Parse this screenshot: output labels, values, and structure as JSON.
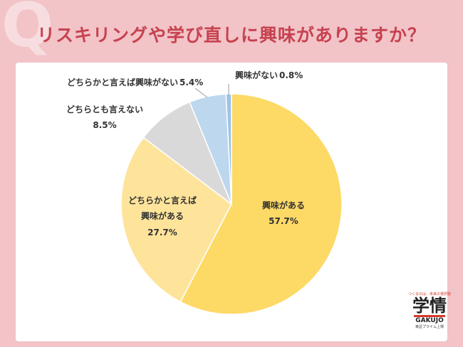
{
  "chart_data": {
    "type": "pie",
    "title_mark": "Q",
    "title": "リスキリングや学び直しに興味がありますか？",
    "categories": [
      "興味がある",
      "どちらかと言えば興味がある",
      "どちらとも言えない",
      "どちらかと言えば興味がない",
      "興味がない"
    ],
    "values": [
      57.7,
      27.7,
      8.5,
      5.4,
      0.8
    ],
    "value_labels": [
      "57.7%",
      "27.7%",
      "8.5%",
      "5.4%",
      "0.8%"
    ],
    "colors": [
      "#fdd966",
      "#fee49b",
      "#d9d9d9",
      "#bdd7ee",
      "#9dc3e6"
    ]
  },
  "logo": {
    "tagline": "つくるのは、未来の選択肢",
    "name": "学情",
    "roman": "GAKUJO",
    "listing": "東証プライム上場"
  }
}
